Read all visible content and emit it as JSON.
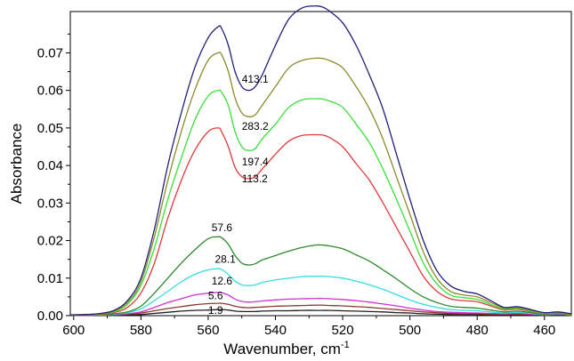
{
  "chart_data": {
    "type": "line",
    "title": "",
    "xlabel": "Wavenumber, cm",
    "xlabel_superscript": "-1",
    "ylabel": "Absorbance",
    "xlim": [
      601,
      452
    ],
    "ylim": [
      0.0,
      0.081
    ],
    "x_reversed": true,
    "x_ticks": [
      600,
      580,
      560,
      540,
      520,
      500,
      480,
      460
    ],
    "y_ticks": [
      0.0,
      0.01,
      0.02,
      0.03,
      0.04,
      0.05,
      0.06,
      0.07
    ],
    "y_tick_labels": [
      "0.00",
      "0.01",
      "0.02",
      "0.03",
      "0.04",
      "0.05",
      "0.06",
      "0.07"
    ],
    "grid": false,
    "legend": "none",
    "x": [
      601,
      596,
      592,
      588,
      584,
      580,
      576,
      572,
      568,
      564,
      560,
      557,
      556,
      554,
      552,
      550,
      548,
      546,
      544,
      540,
      536,
      532,
      528,
      526,
      524,
      520,
      516,
      512,
      508,
      504,
      500,
      496,
      492,
      488,
      484,
      480,
      476,
      472,
      468,
      464,
      460,
      456,
      452
    ],
    "series": [
      {
        "label": "413.1",
        "color": "#1f1f7a",
        "label_x": 550,
        "label_y": 0.063,
        "values": [
          0.0002,
          0.0003,
          0.0006,
          0.0014,
          0.004,
          0.01,
          0.023,
          0.04,
          0.054,
          0.066,
          0.074,
          0.077,
          0.0765,
          0.072,
          0.065,
          0.061,
          0.06,
          0.061,
          0.064,
          0.072,
          0.079,
          0.082,
          0.0825,
          0.0822,
          0.0812,
          0.078,
          0.072,
          0.064,
          0.055,
          0.043,
          0.031,
          0.02,
          0.012,
          0.008,
          0.0065,
          0.0058,
          0.004,
          0.0022,
          0.0024,
          0.0016,
          0.0008,
          0.001,
          0.0005
        ]
      },
      {
        "label": "283.2",
        "color": "#8a8a2c",
        "label_x": 550,
        "label_y": 0.0505,
        "values": [
          0.0002,
          0.0003,
          0.0005,
          0.0012,
          0.0035,
          0.009,
          0.021,
          0.036,
          0.049,
          0.06,
          0.068,
          0.07,
          0.0695,
          0.065,
          0.058,
          0.054,
          0.053,
          0.0535,
          0.056,
          0.061,
          0.066,
          0.068,
          0.0686,
          0.0685,
          0.068,
          0.066,
          0.061,
          0.055,
          0.047,
          0.037,
          0.027,
          0.017,
          0.01,
          0.0065,
          0.0055,
          0.005,
          0.0035,
          0.002,
          0.0022,
          0.0014,
          0.0007,
          0.0009,
          0.0004
        ]
      },
      {
        "label": "197.4",
        "color": "#3ae03a",
        "label_x": 550,
        "label_y": 0.041,
        "values": [
          0.0002,
          0.0003,
          0.0005,
          0.001,
          0.003,
          0.008,
          0.018,
          0.031,
          0.042,
          0.052,
          0.0585,
          0.06,
          0.0595,
          0.056,
          0.049,
          0.045,
          0.044,
          0.0445,
          0.047,
          0.051,
          0.0555,
          0.0575,
          0.0578,
          0.0577,
          0.0572,
          0.0555,
          0.051,
          0.046,
          0.039,
          0.031,
          0.0225,
          0.014,
          0.0085,
          0.0055,
          0.0048,
          0.0043,
          0.003,
          0.0017,
          0.002,
          0.0012,
          0.0006,
          0.0008,
          0.0003
        ]
      },
      {
        "label": "113.2",
        "color": "#e03a3a",
        "label_x": 550,
        "label_y": 0.0365,
        "values": [
          0.0001,
          0.0002,
          0.0004,
          0.0008,
          0.0022,
          0.006,
          0.014,
          0.026,
          0.036,
          0.044,
          0.049,
          0.05,
          0.049,
          0.045,
          0.0395,
          0.037,
          0.0365,
          0.037,
          0.039,
          0.043,
          0.0465,
          0.048,
          0.0482,
          0.0481,
          0.0475,
          0.045,
          0.0405,
          0.036,
          0.03,
          0.0235,
          0.017,
          0.0105,
          0.0065,
          0.0045,
          0.004,
          0.0037,
          0.0026,
          0.0015,
          0.0017,
          0.0011,
          0.0005,
          0.0007,
          0.0003
        ]
      },
      {
        "label": "57.6",
        "color": "#2a8a2a",
        "label_x": 559,
        "label_y": 0.0235,
        "values": [
          0.0001,
          0.0002,
          0.0003,
          0.0005,
          0.001,
          0.0025,
          0.006,
          0.01,
          0.014,
          0.0175,
          0.0205,
          0.021,
          0.0208,
          0.019,
          0.016,
          0.014,
          0.0135,
          0.0138,
          0.0148,
          0.016,
          0.0172,
          0.0182,
          0.0188,
          0.0188,
          0.0186,
          0.0178,
          0.0162,
          0.0145,
          0.0122,
          0.0098,
          0.0072,
          0.005,
          0.0035,
          0.0025,
          0.0022,
          0.002,
          0.0015,
          0.001,
          0.0012,
          0.0008,
          0.0004,
          0.0006,
          0.0002
        ]
      },
      {
        "label": "28.1",
        "color": "#33dde0",
        "label_x": 558,
        "label_y": 0.015,
        "values": [
          0.0001,
          0.0002,
          0.0002,
          0.0004,
          0.0008,
          0.0018,
          0.004,
          0.0065,
          0.009,
          0.011,
          0.0122,
          0.0125,
          0.0123,
          0.011,
          0.0092,
          0.0082,
          0.008,
          0.0082,
          0.0088,
          0.0095,
          0.01,
          0.0104,
          0.0105,
          0.0105,
          0.0104,
          0.01,
          0.0092,
          0.0082,
          0.007,
          0.0056,
          0.0042,
          0.003,
          0.0022,
          0.0016,
          0.0014,
          0.0013,
          0.001,
          0.0007,
          0.0009,
          0.0006,
          0.0003,
          0.0005,
          0.0002
        ]
      },
      {
        "label": "12.6",
        "color": "#d030d0",
        "label_x": 559,
        "label_y": 0.0092,
        "values": [
          0.0001,
          0.0001,
          0.0002,
          0.0003,
          0.0005,
          0.001,
          0.0022,
          0.0035,
          0.0045,
          0.0055,
          0.006,
          0.0062,
          0.0061,
          0.0055,
          0.0044,
          0.0038,
          0.0036,
          0.0037,
          0.0039,
          0.0042,
          0.0044,
          0.0045,
          0.0046,
          0.0046,
          0.0045,
          0.0043,
          0.004,
          0.0036,
          0.0031,
          0.0026,
          0.002,
          0.0015,
          0.0011,
          0.0009,
          0.0008,
          0.0007,
          0.0006,
          0.0005,
          0.0006,
          0.0004,
          0.0003,
          0.0004,
          0.0002
        ]
      },
      {
        "label": "5.6",
        "color": "#8a3a2a",
        "label_x": 560,
        "label_y": 0.0053,
        "values": [
          0.0001,
          0.0001,
          0.0002,
          0.0002,
          0.0004,
          0.0007,
          0.0013,
          0.0019,
          0.0024,
          0.0029,
          0.0032,
          0.0033,
          0.0033,
          0.003,
          0.0025,
          0.0022,
          0.0021,
          0.0022,
          0.0023,
          0.0025,
          0.0026,
          0.0027,
          0.0028,
          0.0028,
          0.0027,
          0.0026,
          0.0024,
          0.0022,
          0.0019,
          0.0016,
          0.0013,
          0.001,
          0.0008,
          0.0006,
          0.0005,
          0.0005,
          0.0004,
          0.0004,
          0.0004,
          0.0003,
          0.0002,
          0.0003,
          0.0001
        ]
      },
      {
        "label": "1.9",
        "color": "#202020",
        "label_x": 560,
        "label_y": 0.0014,
        "values": [
          0.0,
          0.0001,
          0.0001,
          0.0001,
          0.0002,
          0.0003,
          0.0006,
          0.0009,
          0.0012,
          0.0014,
          0.0015,
          0.0016,
          0.0016,
          0.0015,
          0.0012,
          0.0011,
          0.0011,
          0.0011,
          0.0012,
          0.0013,
          0.0013,
          0.0014,
          0.0014,
          0.0014,
          0.0014,
          0.0013,
          0.0012,
          0.0011,
          0.001,
          0.0008,
          0.0007,
          0.0005,
          0.0004,
          0.0003,
          0.0003,
          0.0003,
          0.0002,
          0.0002,
          0.0002,
          0.0002,
          0.0001,
          0.0002,
          0.0001
        ]
      }
    ]
  }
}
